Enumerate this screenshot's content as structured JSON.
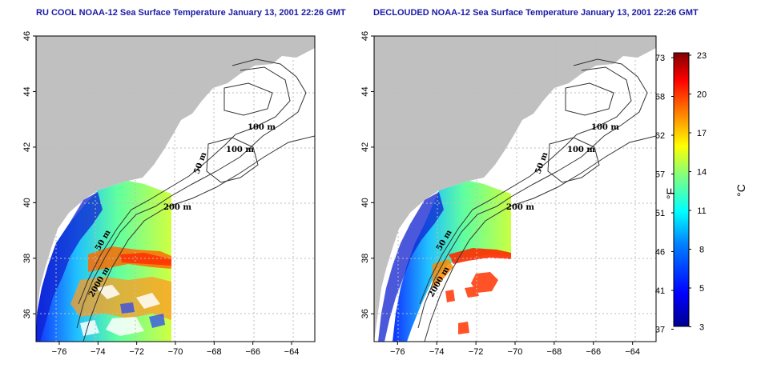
{
  "panels": [
    {
      "id": "left",
      "title": "RU COOL NOAA-12 Sea Surface Temperature January 13, 2001 22:26 GMT"
    },
    {
      "id": "right",
      "title": "DECLOUDED NOAA-12 Sea Surface Temperature January 13, 2001 22:26 GMT"
    }
  ],
  "axes": {
    "lon_ticks": [
      -76,
      -74,
      -72,
      -70,
      -68,
      -66,
      -64
    ],
    "lat_ticks": [
      36,
      38,
      40,
      42,
      44,
      46
    ],
    "lon_range": [
      -77.2,
      -62.8
    ],
    "lat_range": [
      35.0,
      46.0
    ]
  },
  "contour_labels": [
    "100 m",
    "100 m",
    "50 m",
    "200 m",
    "50 m",
    "2000 m"
  ],
  "colorbar": {
    "fahrenheit_ticks": [
      "73",
      "68",
      "62",
      "57",
      "51",
      "46",
      "41",
      "37"
    ],
    "celsius_ticks": [
      "23",
      "20",
      "17",
      "14",
      "11",
      "8",
      "5",
      "3"
    ],
    "fahrenheit_label": "°F",
    "celsius_label": "°C",
    "colors": [
      "#00008f",
      "#0000ff",
      "#0080ff",
      "#00ffff",
      "#80ff80",
      "#ffff00",
      "#ff8000",
      "#ff0000",
      "#800000"
    ]
  },
  "style": {
    "land_color": "#c0c0c0",
    "title_color": "#1a1aa6",
    "grid_color": "#bdbdbd"
  }
}
